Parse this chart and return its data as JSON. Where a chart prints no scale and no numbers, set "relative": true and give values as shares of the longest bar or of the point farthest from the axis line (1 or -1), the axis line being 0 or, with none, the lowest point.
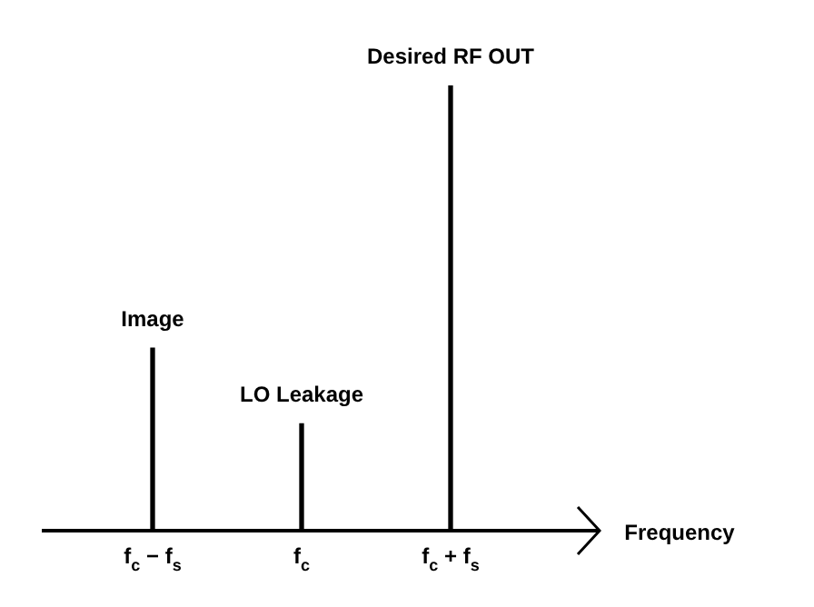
{
  "chart_data": {
    "type": "bar",
    "relative": true,
    "xlabel": "Frequency",
    "categories": [
      "f$_{c}$ − f$_{s}$",
      "f$_{c}$",
      "f$_{c}$ + f$_{s}$"
    ],
    "values": [
      0.41,
      0.24,
      1
    ],
    "color": "#000000",
    "legend": false,
    "annotations": [
      {
        "text": "Image",
        "x": "f$_{c}$ − f$_{s}$",
        "y": 0.41
      },
      {
        "text": "LO Leakage",
        "x": "f$_{c}$",
        "y": 0.24
      },
      {
        "text": "Desired RF OUT",
        "x": "f$_{c}$ + f$_{s}$",
        "y": 1
      }
    ]
  }
}
